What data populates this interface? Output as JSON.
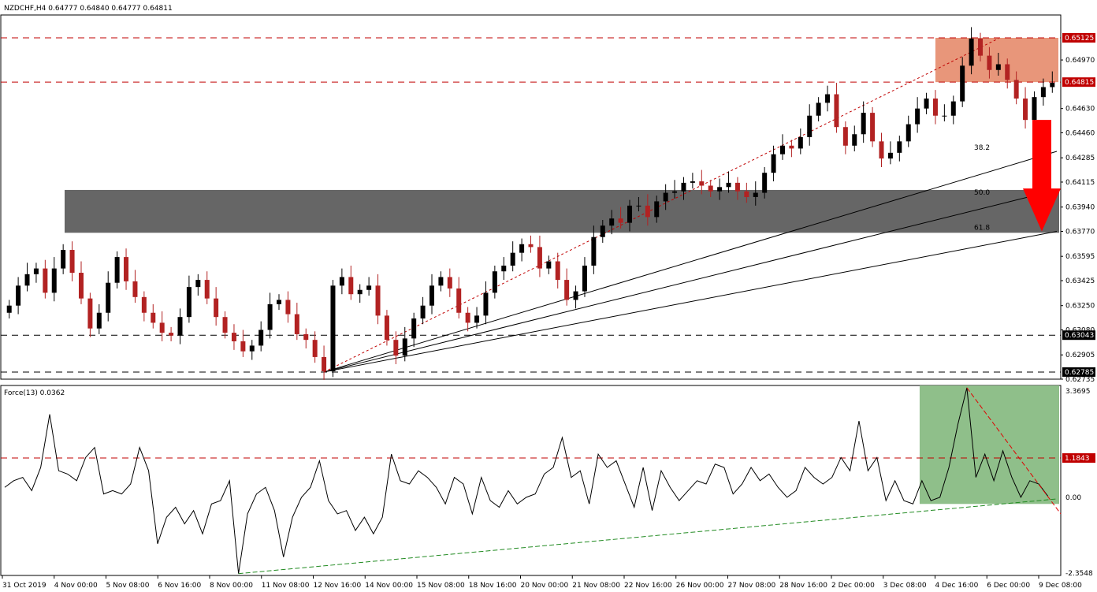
{
  "header": {
    "symbol_line": "NZDCHF,H4  0.64777 0.64840 0.64777 0.64811",
    "indicator_line": "Force(13) 0.0362"
  },
  "colors": {
    "bull": "#000000",
    "bear": "#b22222",
    "resistance_zone": "#e8967a",
    "support_zone": "#666666",
    "force_zone": "#8fbf8a",
    "arrow": "#ff0000",
    "level_line": "#c00000",
    "force_trend": "#228b22"
  },
  "chart_data": [
    {
      "type": "candlestick",
      "title": "NZDCHF,H4",
      "ylim": [
        0.62735,
        0.65285
      ],
      "yticks": [
        "0.65125",
        "0.64970",
        "0.64815",
        "0.64630",
        "0.64460",
        "0.64285",
        "0.64115",
        "0.63940",
        "0.63770",
        "0.63595",
        "0.63425",
        "0.63250",
        "0.63080",
        "0.63043",
        "0.62905",
        "0.62785",
        "0.62735"
      ],
      "xticks": [
        "31 Oct 2019",
        "4 Nov 00:00",
        "5 Nov 08:00",
        "6 Nov 16:00",
        "8 Nov 00:00",
        "11 Nov 08:00",
        "12 Nov 16:00",
        "14 Nov 00:00",
        "15 Nov 08:00",
        "18 Nov 16:00",
        "20 Nov 00:00",
        "21 Nov 08:00",
        "22 Nov 16:00",
        "26 Nov 00:00",
        "27 Nov 08:00",
        "28 Nov 16:00",
        "2 Dec 00:00",
        "3 Dec 08:00",
        "4 Dec 16:00",
        "6 Dec 00:00",
        "9 Dec 08:00"
      ],
      "levels": [
        {
          "value": 0.65125,
          "label": "0.65125",
          "style": "red-dashed"
        },
        {
          "value": 0.64815,
          "label": "0.64815",
          "style": "red-dashed"
        },
        {
          "value": 0.63043,
          "label": "0.63043",
          "style": "black-dashed"
        },
        {
          "value": 0.62785,
          "label": "0.62785",
          "style": "black-dashed"
        }
      ],
      "zones": [
        {
          "name": "resistance",
          "from": 0.64815,
          "to": 0.65125
        },
        {
          "name": "support",
          "from": 0.6376,
          "to": 0.6406
        }
      ],
      "fib_labels": [
        "38.2",
        "50.0",
        "61.8"
      ],
      "close_values": [
        0.6325,
        0.6339,
        0.6347,
        0.6351,
        0.6334,
        0.6351,
        0.6364,
        0.6348,
        0.633,
        0.6309,
        0.632,
        0.6341,
        0.6359,
        0.6342,
        0.6331,
        0.632,
        0.6313,
        0.6306,
        0.6304,
        0.6317,
        0.6338,
        0.6343,
        0.633,
        0.6317,
        0.6306,
        0.63,
        0.6293,
        0.6297,
        0.6308,
        0.6326,
        0.6329,
        0.6319,
        0.6305,
        0.6301,
        0.6289,
        0.6279,
        0.6339,
        0.6345,
        0.6333,
        0.6336,
        0.6339,
        0.6318,
        0.6301,
        0.629,
        0.6302,
        0.6316,
        0.6325,
        0.6339,
        0.6345,
        0.6337,
        0.632,
        0.6313,
        0.6318,
        0.6334,
        0.6349,
        0.6353,
        0.6362,
        0.6368,
        0.6366,
        0.6351,
        0.6356,
        0.6343,
        0.6329,
        0.6335,
        0.6353,
        0.6373,
        0.6381,
        0.6386,
        0.6383,
        0.6395,
        0.6395,
        0.6387,
        0.6398,
        0.6404,
        0.6405,
        0.6411,
        0.6412,
        0.6409,
        0.6405,
        0.6408,
        0.6411,
        0.6405,
        0.6401,
        0.6404,
        0.6418,
        0.6431,
        0.6437,
        0.6435,
        0.6443,
        0.6458,
        0.6467,
        0.6473,
        0.645,
        0.6437,
        0.6445,
        0.646,
        0.644,
        0.6428,
        0.6432,
        0.644,
        0.6452,
        0.6463,
        0.647,
        0.6458,
        0.6458,
        0.6468,
        0.6493,
        0.6512,
        0.65,
        0.649,
        0.6494,
        0.6483,
        0.647,
        0.6455,
        0.6471,
        0.6478,
        0.6481
      ]
    },
    {
      "type": "line",
      "title": "Force(13)",
      "ylim": [
        -2.3548,
        3.3695
      ],
      "yticks": [
        "3.3695",
        "1.1843",
        "0.00",
        "-2.3548"
      ],
      "levels": [
        {
          "value": 1.1843,
          "label": "1.1843",
          "style": "red-dashed"
        }
      ],
      "values": [
        0.3,
        0.5,
        0.6,
        0.2,
        0.9,
        2.5,
        0.8,
        0.7,
        0.5,
        1.2,
        1.5,
        0.1,
        0.2,
        0.1,
        0.4,
        1.5,
        0.8,
        -1.4,
        -0.6,
        -0.3,
        -0.8,
        -0.4,
        -1.1,
        -0.2,
        -0.1,
        0.5,
        -2.3,
        -0.5,
        0.1,
        0.3,
        -0.4,
        -1.8,
        -0.6,
        0.0,
        0.3,
        1.1,
        -0.1,
        -0.5,
        -0.4,
        -1.0,
        -0.6,
        -1.1,
        -0.6,
        1.3,
        0.5,
        0.4,
        0.8,
        0.6,
        0.3,
        -0.2,
        0.6,
        0.4,
        -0.5,
        0.6,
        -0.1,
        -0.3,
        0.2,
        -0.2,
        0.0,
        0.1,
        0.7,
        0.9,
        1.8,
        0.6,
        0.8,
        -0.2,
        1.3,
        0.9,
        1.1,
        0.4,
        -0.3,
        0.9,
        -0.4,
        0.8,
        0.3,
        -0.1,
        0.2,
        0.5,
        0.4,
        1.0,
        0.9,
        0.1,
        0.4,
        0.9,
        0.5,
        0.7,
        0.3,
        0.0,
        0.2,
        0.9,
        0.6,
        0.4,
        0.6,
        1.2,
        0.8,
        2.3,
        0.8,
        1.2,
        -0.1,
        0.5,
        -0.1,
        -0.2,
        0.5,
        -0.1,
        0.0,
        0.9,
        2.2,
        3.3,
        0.6,
        1.3,
        0.5,
        1.4,
        0.6,
        0.0,
        0.5,
        0.4,
        0.0362
      ]
    }
  ]
}
